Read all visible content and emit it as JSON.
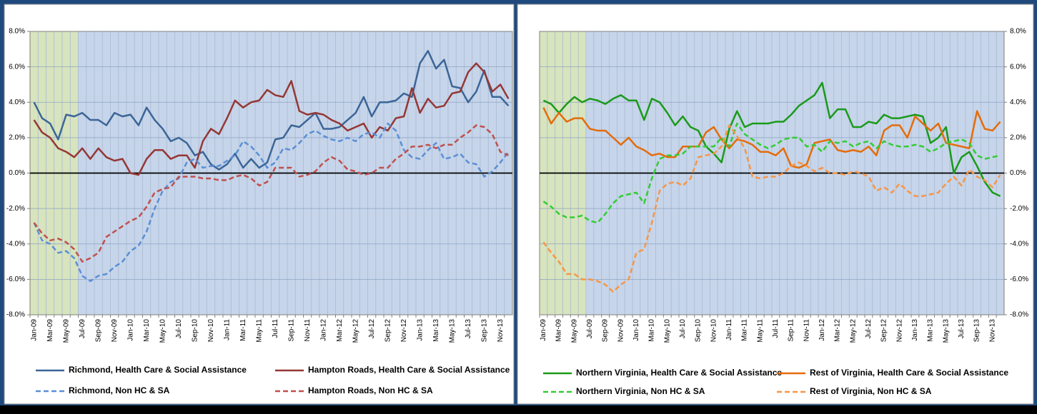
{
  "chart_data": [
    {
      "type": "line",
      "categories": [
        "Jan-09",
        null,
        "Mar-09",
        null,
        "May-09",
        null,
        "Jul-09",
        null,
        "Sep-09",
        null,
        "Nov-09",
        null,
        "Jan-10",
        null,
        "Mar-10",
        null,
        "May-10",
        null,
        "Jul-10",
        null,
        "Sep-10",
        null,
        "Nov-10",
        null,
        "Jan-11",
        null,
        "Mar-11",
        null,
        "May-11",
        null,
        "Jul-11",
        null,
        "Sep-11",
        null,
        "Nov-11",
        null,
        "Jan-12",
        null,
        "Mar-12",
        null,
        "May-12",
        null,
        "Jul-12",
        null,
        "Sep-12",
        null,
        "Nov-12",
        null,
        "Jan-13",
        null,
        "Mar-13",
        null,
        "May-13",
        null,
        "Jul-13",
        null,
        "Sep-13",
        null,
        "Nov-13",
        null
      ],
      "ylim": [
        -8,
        8
      ],
      "yticks": [
        {
          "value": -8,
          "label": "-8.0%"
        },
        {
          "value": -6,
          "label": "-6.0%"
        },
        {
          "value": -4,
          "label": "-4.0%"
        },
        {
          "value": -2,
          "label": "-2.0%"
        },
        {
          "value": 0,
          "label": "0.0%"
        },
        {
          "value": 2,
          "label": "2.0%"
        },
        {
          "value": 4,
          "label": "4.0%"
        },
        {
          "value": 6,
          "label": "6.0%"
        },
        {
          "value": 8,
          "label": "8.0%"
        }
      ],
      "yaxis_side": "left",
      "grid": true,
      "series": [
        {
          "name": "Richmond, Health Care & Social Assistance",
          "color": "#3b6597",
          "dashed": false,
          "values": [
            4.0,
            3.1,
            2.8,
            1.9,
            3.3,
            3.2,
            3.4,
            3.0,
            3.0,
            2.7,
            3.4,
            3.2,
            3.3,
            2.7,
            3.7,
            3.0,
            2.5,
            1.8,
            2.0,
            1.7,
            1.0,
            1.2,
            0.5,
            0.2,
            0.5,
            1.1,
            0.3,
            0.8,
            0.3,
            0.6,
            1.9,
            2.0,
            2.7,
            2.6,
            3.0,
            3.4,
            2.5,
            2.5,
            2.6,
            3.0,
            3.4,
            4.3,
            3.2,
            4.0,
            4.0,
            4.1,
            4.5,
            4.3,
            6.2,
            6.9,
            5.9,
            6.4,
            4.9,
            4.8,
            4.0,
            4.6,
            5.8,
            4.3,
            4.3,
            3.8
          ]
        },
        {
          "name": "Hampton Roads, Health Care & Social Assistance",
          "color": "#953735",
          "dashed": false,
          "values": [
            3.0,
            2.3,
            2.0,
            1.4,
            1.2,
            0.9,
            1.4,
            0.8,
            1.4,
            0.9,
            0.7,
            0.8,
            0.0,
            -0.1,
            0.8,
            1.3,
            1.3,
            0.8,
            1.0,
            1.0,
            0.3,
            1.8,
            2.5,
            2.2,
            3.1,
            4.1,
            3.7,
            4.0,
            4.1,
            4.7,
            4.4,
            4.3,
            5.2,
            3.5,
            3.3,
            3.4,
            3.3,
            3.0,
            2.8,
            2.4,
            2.6,
            2.8,
            2.0,
            2.6,
            2.4,
            3.1,
            3.2,
            4.8,
            3.4,
            4.2,
            3.7,
            3.8,
            4.5,
            4.6,
            5.7,
            6.2,
            5.7,
            4.6,
            5.0,
            4.2
          ]
        },
        {
          "name": "Richmond, Non HC & SA",
          "color": "#5b8fd5",
          "dashed": true,
          "values": [
            -2.8,
            -3.8,
            -4.0,
            -4.5,
            -4.4,
            -4.8,
            -5.8,
            -6.1,
            -5.8,
            -5.7,
            -5.3,
            -5.0,
            -4.4,
            -4.1,
            -3.3,
            -2.0,
            -1.0,
            -0.5,
            -0.3,
            0.6,
            0.8,
            0.3,
            0.4,
            0.4,
            0.7,
            1.0,
            1.8,
            1.5,
            1.0,
            0.3,
            0.6,
            1.4,
            1.3,
            1.7,
            2.2,
            2.4,
            2.1,
            1.9,
            1.8,
            2.0,
            1.8,
            2.2,
            2.3,
            2.0,
            2.8,
            2.4,
            1.3,
            0.9,
            0.8,
            1.3,
            1.7,
            0.8,
            0.9,
            1.1,
            0.6,
            0.5,
            -0.2,
            0.1,
            0.6,
            1.2
          ]
        },
        {
          "name": "Hampton Roads, Non HC & SA",
          "color": "#c0504d",
          "dashed": true,
          "values": [
            -2.8,
            -3.4,
            -3.8,
            -3.7,
            -3.9,
            -4.3,
            -5.0,
            -4.8,
            -4.5,
            -3.6,
            -3.3,
            -3.0,
            -2.7,
            -2.5,
            -1.9,
            -1.1,
            -0.9,
            -0.8,
            -0.2,
            -0.2,
            -0.2,
            -0.3,
            -0.3,
            -0.4,
            -0.4,
            -0.2,
            -0.1,
            -0.3,
            -0.7,
            -0.5,
            0.3,
            0.3,
            0.3,
            -0.2,
            -0.1,
            0.1,
            0.6,
            0.9,
            0.7,
            0.2,
            0.1,
            -0.1,
            0.0,
            0.3,
            0.3,
            0.8,
            1.1,
            1.5,
            1.5,
            1.6,
            1.4,
            1.6,
            1.6,
            2.0,
            2.3,
            2.7,
            2.6,
            2.2,
            1.2,
            1.0
          ]
        }
      ]
    },
    {
      "type": "line",
      "categories": [
        "Jan-09",
        null,
        "Mar-09",
        null,
        "May-09",
        null,
        "Jul-09",
        null,
        "Sep-09",
        null,
        "Nov-09",
        null,
        "Jan-10",
        null,
        "Mar-10",
        null,
        "May-10",
        null,
        "Jul-10",
        null,
        "Sep-10",
        null,
        "Nov-10",
        null,
        "Jan-11",
        null,
        "Mar-11",
        null,
        "May-11",
        null,
        "Jul-11",
        null,
        "Sep-11",
        null,
        "Nov-11",
        null,
        "Jan-12",
        null,
        "Mar-12",
        null,
        "May-12",
        null,
        "Jul-12",
        null,
        "Sep-12",
        null,
        "Nov-12",
        null,
        "Jan-13",
        null,
        "Mar-13",
        null,
        "May-13",
        null,
        "Jul-13",
        null,
        "Sep-13",
        null,
        "Nov-13",
        null
      ],
      "ylim": [
        -8,
        8
      ],
      "yticks": [
        {
          "value": -8,
          "label": "-8.0%"
        },
        {
          "value": -6,
          "label": "-6.0%"
        },
        {
          "value": -4,
          "label": "-4.0%"
        },
        {
          "value": -2,
          "label": "-2.0%"
        },
        {
          "value": 0,
          "label": "0.0%"
        },
        {
          "value": 2,
          "label": "2.0%"
        },
        {
          "value": 4,
          "label": "4.0%"
        },
        {
          "value": 6,
          "label": "6.0%"
        },
        {
          "value": 8,
          "label": "8.0%"
        }
      ],
      "yaxis_side": "right",
      "grid": true,
      "series": [
        {
          "name": "Northern Virginia, Health Care & Social Assistance",
          "color": "#1a9a1a",
          "dashed": false,
          "values": [
            4.1,
            3.9,
            3.4,
            3.9,
            4.3,
            4.0,
            4.2,
            4.1,
            3.9,
            4.2,
            4.4,
            4.1,
            4.1,
            3.0,
            4.2,
            4.0,
            3.4,
            2.7,
            3.2,
            2.6,
            2.4,
            1.5,
            1.1,
            0.6,
            2.5,
            3.5,
            2.6,
            2.8,
            2.8,
            2.8,
            2.9,
            2.9,
            3.3,
            3.8,
            4.1,
            4.4,
            5.1,
            3.1,
            3.6,
            3.6,
            2.6,
            2.6,
            2.9,
            2.8,
            3.3,
            3.1,
            3.1,
            3.2,
            3.3,
            3.2,
            1.7,
            2.0,
            2.6,
            0.0,
            0.9,
            1.2,
            0.4,
            -0.5,
            -1.1,
            -1.3
          ]
        },
        {
          "name": "Rest of Virginia, Health Care & Social Assistance",
          "color": "#e46c0a",
          "dashed": false,
          "values": [
            3.7,
            2.8,
            3.4,
            2.9,
            3.1,
            3.1,
            2.5,
            2.4,
            2.4,
            2.0,
            1.6,
            2.0,
            1.5,
            1.3,
            1.0,
            1.1,
            0.9,
            0.9,
            1.5,
            1.5,
            1.5,
            2.3,
            2.6,
            1.9,
            1.4,
            1.9,
            1.8,
            1.6,
            1.2,
            1.2,
            1.0,
            1.4,
            0.4,
            0.3,
            0.5,
            1.7,
            1.8,
            1.9,
            1.3,
            1.2,
            1.3,
            1.2,
            1.5,
            1.0,
            2.4,
            2.7,
            2.7,
            2.0,
            3.2,
            2.8,
            2.4,
            2.8,
            1.7,
            1.6,
            1.5,
            1.4,
            3.5,
            2.5,
            2.4,
            2.9
          ]
        },
        {
          "name": "Northern Virginia, Non HC & SA",
          "color": "#33cc33",
          "dashed": true,
          "values": [
            -1.6,
            -1.9,
            -2.3,
            -2.5,
            -2.5,
            -2.4,
            -2.7,
            -2.8,
            -2.3,
            -1.7,
            -1.3,
            -1.2,
            -1.1,
            -1.7,
            -0.3,
            0.8,
            1.0,
            1.0,
            1.1,
            1.5,
            1.5,
            1.5,
            1.5,
            2.0,
            1.5,
            2.8,
            2.2,
            1.9,
            1.6,
            1.4,
            1.6,
            1.9,
            2.0,
            2.0,
            1.5,
            1.6,
            1.2,
            1.8,
            1.7,
            1.8,
            1.5,
            1.7,
            1.8,
            1.4,
            1.8,
            1.6,
            1.5,
            1.5,
            1.6,
            1.5,
            1.2,
            1.4,
            1.7,
            1.8,
            1.9,
            1.7,
            1.0,
            0.8,
            0.9,
            1.0
          ]
        },
        {
          "name": "Rest of Virginia, Non HC & SA",
          "color": "#f79646",
          "dashed": true,
          "values": [
            -3.9,
            -4.5,
            -5.0,
            -5.7,
            -5.7,
            -6.0,
            -6.0,
            -6.1,
            -6.3,
            -6.7,
            -6.3,
            -6.0,
            -4.5,
            -4.3,
            -2.8,
            -1.0,
            -0.6,
            -0.5,
            -0.7,
            -0.3,
            0.9,
            1.0,
            1.1,
            1.5,
            2.7,
            2.1,
            1.4,
            -0.2,
            -0.3,
            -0.2,
            -0.2,
            0.0,
            0.4,
            0.6,
            0.4,
            0.1,
            0.3,
            0.0,
            0.0,
            -0.1,
            0.1,
            0.0,
            -0.2,
            -1.0,
            -0.8,
            -1.1,
            -0.6,
            -1.0,
            -1.3,
            -1.3,
            -1.2,
            -1.1,
            -0.6,
            -0.2,
            -0.7,
            0.2,
            -0.2,
            -0.4,
            -0.8,
            -0.1
          ]
        }
      ]
    }
  ]
}
